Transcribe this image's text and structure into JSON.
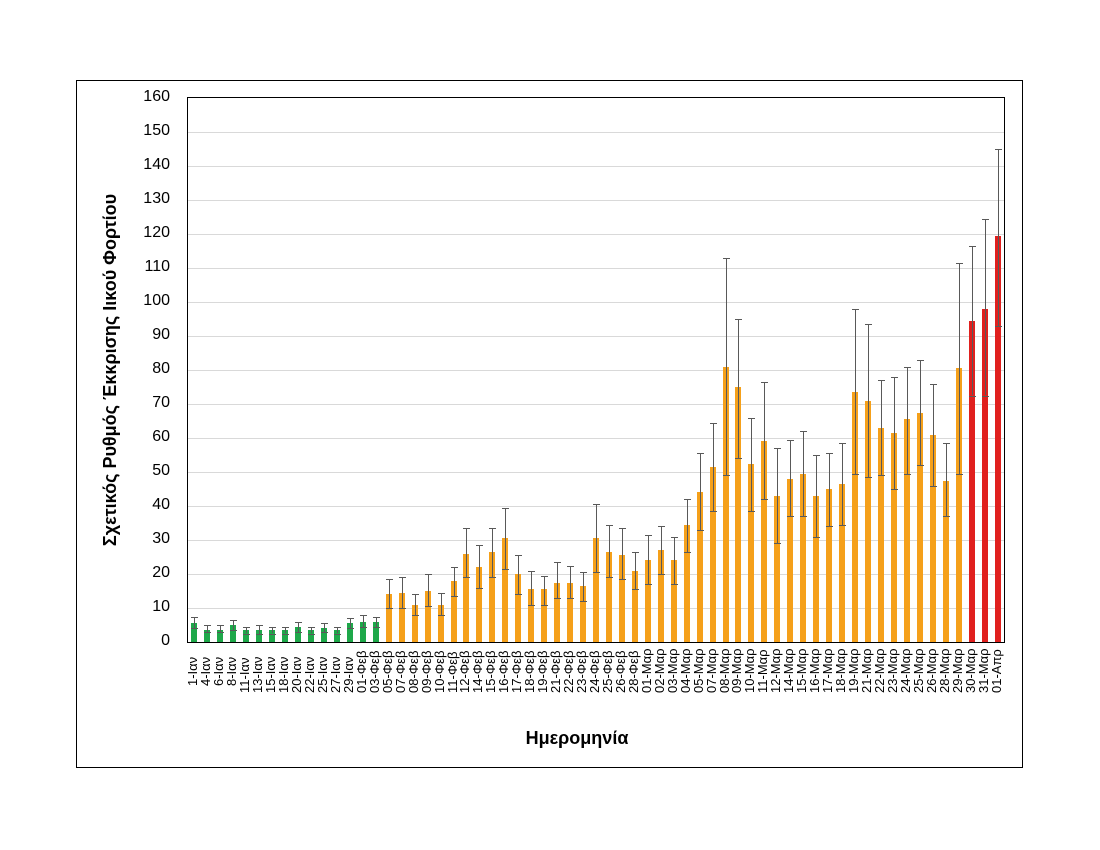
{
  "chart_data": {
    "type": "bar",
    "title": "",
    "xlabel": "Ημερομηνία",
    "ylabel": "Σχετικός Ρυθμός Έκκρισης Ιικού Φορτίου",
    "ylim": [
      0,
      160
    ],
    "yticks": [
      0,
      10,
      20,
      30,
      40,
      50,
      60,
      70,
      80,
      90,
      100,
      110,
      120,
      130,
      140,
      150,
      160
    ],
    "grid": true,
    "legend": null,
    "colors": {
      "green": "#1ea84a",
      "orange": "#f5a01a",
      "red": "#e0201e",
      "error": "#595959"
    },
    "categories": [
      "1-Ιαν",
      "4-Ιαν",
      "6-Ιαν",
      "8-Ιαν",
      "11-Ιαν",
      "13-Ιαν",
      "15-Ιαν",
      "18-Ιαν",
      "20-Ιαν",
      "22-Ιαν",
      "25-Ιαν",
      "27-Ιαν",
      "29-Ιαν",
      "01-Φεβ",
      "03-Φεβ",
      "05-Φεβ",
      "07-Φεβ",
      "08-Φεβ",
      "09-Φεβ",
      "10-Φεβ",
      "11-Φεβ",
      "12-Φεβ",
      "14-Φεβ",
      "15-Φεβ",
      "16-Φεβ",
      "17-Φεβ",
      "18-Φεβ",
      "19-Φεβ",
      "21-Φεβ",
      "22-Φεβ",
      "23-Φεβ",
      "24-Φεβ",
      "25-Φεβ",
      "26-Φεβ",
      "28-Φεβ",
      "01-Μαρ",
      "02-Μαρ",
      "03-Μαρ",
      "04-Μαρ",
      "05-Μαρ",
      "07-Μαρ",
      "08-Μαρ",
      "09-Μαρ",
      "10-Μαρ",
      "11-Μαρ",
      "12-Μαρ",
      "14-Μαρ",
      "15-Μαρ",
      "16-Μαρ",
      "17-Μαρ",
      "18-Μαρ",
      "19-Μαρ",
      "21-Μαρ",
      "22-Μαρ",
      "23-Μαρ",
      "24-Μαρ",
      "25-Μαρ",
      "26-Μαρ",
      "28-Μαρ",
      "29-Μαρ",
      "30-Μαρ",
      "31-Μαρ",
      "01-Απρ"
    ],
    "values": [
      5.5,
      3.5,
      3.5,
      5,
      3.5,
      3.5,
      3.5,
      3.5,
      4.5,
      3.5,
      4,
      3.5,
      5.5,
      6,
      6,
      14,
      14.5,
      11,
      15,
      11,
      18,
      26,
      22,
      26.5,
      30.5,
      20,
      15.5,
      15.5,
      17.5,
      17.5,
      16.5,
      30.5,
      26.5,
      25.5,
      21,
      24,
      27,
      24,
      34.5,
      44,
      51.5,
      81,
      75,
      52.5,
      59,
      43,
      48,
      49.5,
      43,
      45,
      46.5,
      73.5,
      71,
      63,
      61.5,
      65.5,
      67.5,
      61,
      47.5,
      80.5,
      94.5,
      98,
      119.5
    ],
    "err_low": [
      4,
      3,
      3,
      3.5,
      2.5,
      2.5,
      2.5,
      2.5,
      3,
      2.5,
      3,
      2.5,
      4,
      4.5,
      4.5,
      10,
      10,
      8,
      10.5,
      8,
      13.5,
      19,
      16,
      19,
      21.5,
      14,
      11,
      11,
      13,
      13,
      12,
      20.5,
      19,
      18.5,
      15.5,
      17,
      20,
      17,
      26.5,
      33,
      38.5,
      49,
      54,
      38.5,
      42,
      29,
      37,
      37,
      31,
      34,
      34.5,
      49.5,
      48.5,
      49,
      45,
      49.5,
      52,
      46,
      37,
      49.5,
      72.5,
      72.5,
      93
    ],
    "err_high": [
      7.5,
      5,
      5,
      6.5,
      4.5,
      5,
      4.5,
      4.5,
      6,
      4.5,
      5.5,
      4.5,
      7,
      8,
      7.5,
      18.5,
      19,
      14,
      20,
      14.5,
      22,
      33.5,
      28.5,
      33.5,
      39.5,
      25.5,
      21,
      19.5,
      23.5,
      22.5,
      20.5,
      40.5,
      34.5,
      33.5,
      26.5,
      31.5,
      34,
      31,
      42,
      55.5,
      64.5,
      113,
      95,
      66,
      76.5,
      57,
      59.5,
      62,
      55,
      55.5,
      58.5,
      98,
      93.5,
      77,
      78,
      81,
      83,
      76,
      58.5,
      111.5,
      116.5,
      124.5,
      145
    ],
    "color_groups": [
      {
        "color": "green",
        "from": 0,
        "to": 14
      },
      {
        "color": "orange",
        "from": 15,
        "to": 59
      },
      {
        "color": "red",
        "from": 60,
        "to": 62
      }
    ]
  }
}
